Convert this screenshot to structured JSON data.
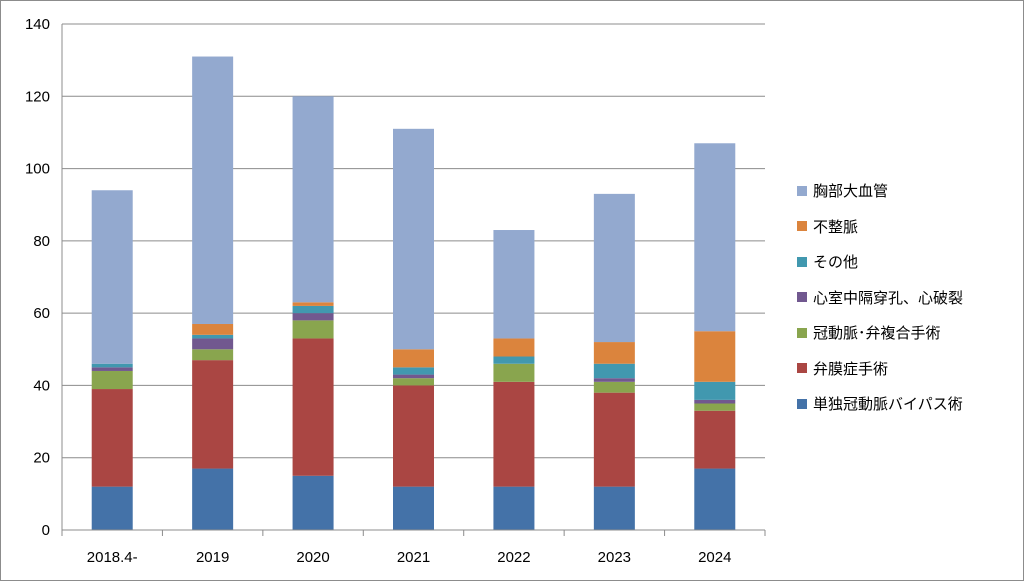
{
  "chart_data": {
    "type": "bar",
    "stacked": true,
    "title": "",
    "xlabel": "",
    "ylabel": "",
    "ylim": [
      0,
      140
    ],
    "yticks": [
      0,
      20,
      40,
      60,
      80,
      100,
      120,
      140
    ],
    "grid": true,
    "legend_position": "right",
    "categories": [
      "2018.4-",
      "2019",
      "2020",
      "2021",
      "2022",
      "2023",
      "2024"
    ],
    "series": [
      {
        "name": "単独冠動脈バイパス術",
        "color": "#4472a8",
        "values": [
          12,
          17,
          15,
          12,
          12,
          12,
          17
        ]
      },
      {
        "name": "弁膜症手術",
        "color": "#aa4643",
        "values": [
          27,
          30,
          38,
          28,
          29,
          26,
          16
        ]
      },
      {
        "name": "冠動脈･弁複合手術",
        "color": "#89a54e",
        "values": [
          5,
          3,
          5,
          2,
          5,
          3,
          2
        ]
      },
      {
        "name": "心室中隔穿孔、心破裂",
        "color": "#71588f",
        "values": [
          1,
          3,
          2,
          1,
          0,
          1,
          1
        ]
      },
      {
        "name": "その他",
        "color": "#4198af",
        "values": [
          1,
          1,
          2,
          2,
          2,
          4,
          5
        ]
      },
      {
        "name": "不整脈",
        "color": "#db843d",
        "values": [
          0,
          3,
          1,
          5,
          5,
          6,
          14
        ]
      },
      {
        "name": "胸部大血管",
        "color": "#93a9cf",
        "values": [
          48,
          74,
          57,
          61,
          30,
          41,
          52
        ]
      }
    ]
  }
}
